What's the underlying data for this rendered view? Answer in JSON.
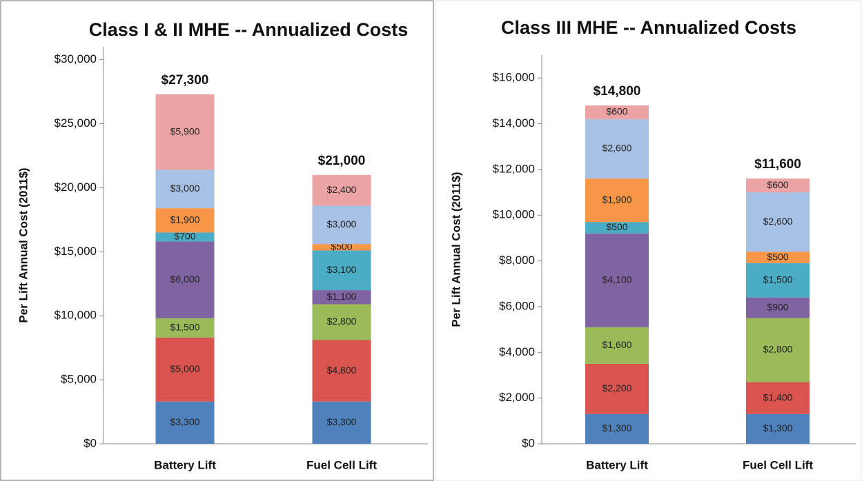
{
  "chart_data": [
    {
      "type": "bar",
      "stacked": true,
      "title": "Class I & II MHE -- Annualized Costs",
      "y_label": "Per Lift Annual Cost (2011$)",
      "categories": [
        "Battery Lift",
        "Fuel Cell Lift"
      ],
      "series": [
        {
          "color": "#4f81bd",
          "values": [
            3300,
            3300
          ],
          "value_labels": [
            "$3,300",
            "$3,300"
          ]
        },
        {
          "color": "#d9534f",
          "values": [
            5000,
            4800
          ],
          "value_labels": [
            "$5,000",
            "$4,800"
          ]
        },
        {
          "color": "#9bbb59",
          "values": [
            1500,
            2800
          ],
          "value_labels": [
            "$1,500",
            "$2,800"
          ]
        },
        {
          "color": "#8064a2",
          "values": [
            6000,
            1100
          ],
          "value_labels": [
            "$6,000",
            "$1,100"
          ]
        },
        {
          "color": "#4bacc6",
          "values": [
            700,
            3100
          ],
          "value_labels": [
            "$700",
            "$3,100"
          ]
        },
        {
          "color": "#f79646",
          "values": [
            1900,
            500
          ],
          "value_labels": [
            "$1,900",
            "$500"
          ]
        },
        {
          "color": "#a7c1e4",
          "values": [
            3000,
            3000
          ],
          "value_labels": [
            "$3,000",
            "$3,000"
          ]
        },
        {
          "color": "#eba3a3",
          "values": [
            5900,
            2400
          ],
          "value_labels": [
            "$5,900",
            "$2,400"
          ]
        }
      ],
      "totals": [
        27300,
        21000
      ],
      "total_labels": [
        "$27,300",
        "$21,000"
      ],
      "ylim": [
        0,
        31000
      ],
      "yticks": [
        {
          "value": 0,
          "label": "$0"
        },
        {
          "value": 5000,
          "label": "$5,000"
        },
        {
          "value": 10000,
          "label": "$10,000"
        },
        {
          "value": 15000,
          "label": "$15,000"
        },
        {
          "value": 20000,
          "label": "$20,000"
        },
        {
          "value": 25000,
          "label": "$25,000"
        },
        {
          "value": 30000,
          "label": "$30,000"
        }
      ],
      "grid": false
    },
    {
      "type": "bar",
      "stacked": true,
      "title": "Class III MHE -- Annualized Costs",
      "y_label": "Per Lift Annual Cost (2011$)",
      "categories": [
        "Battery Lift",
        "Fuel Cell Lift"
      ],
      "series": [
        {
          "color": "#4f81bd",
          "values": [
            1300,
            1300
          ],
          "value_labels": [
            "$1,300",
            "$1,300"
          ]
        },
        {
          "color": "#d9534f",
          "values": [
            2200,
            1400
          ],
          "value_labels": [
            "$2,200",
            "$1,400"
          ]
        },
        {
          "color": "#9bbb59",
          "values": [
            1600,
            2800
          ],
          "value_labels": [
            "$1,600",
            "$2,800"
          ]
        },
        {
          "color": "#8064a2",
          "values": [
            4100,
            900
          ],
          "value_labels": [
            "$4,100",
            "$900"
          ]
        },
        {
          "color": "#4bacc6",
          "values": [
            500,
            1500
          ],
          "value_labels": [
            "$500",
            "$1,500"
          ]
        },
        {
          "color": "#f79646",
          "values": [
            1900,
            500
          ],
          "value_labels": [
            "$1,900",
            "$500"
          ]
        },
        {
          "color": "#a7c1e4",
          "values": [
            2600,
            2600
          ],
          "value_labels": [
            "$2,600",
            "$2,600"
          ]
        },
        {
          "color": "#eba3a3",
          "values": [
            600,
            600
          ],
          "value_labels": [
            "$600",
            "$600"
          ]
        }
      ],
      "totals": [
        14800,
        11600
      ],
      "total_labels": [
        "$14,800",
        "$11,600"
      ],
      "ylim": [
        0,
        17000
      ],
      "yticks": [
        {
          "value": 0,
          "label": "$0"
        },
        {
          "value": 2000,
          "label": "$2,000"
        },
        {
          "value": 4000,
          "label": "$4,000"
        },
        {
          "value": 6000,
          "label": "$6,000"
        },
        {
          "value": 8000,
          "label": "$8,000"
        },
        {
          "value": 10000,
          "label": "$10,000"
        },
        {
          "value": 12000,
          "label": "$12,000"
        },
        {
          "value": 14000,
          "label": "$14,000"
        },
        {
          "value": 16000,
          "label": "$16,000"
        }
      ],
      "grid": false
    }
  ]
}
